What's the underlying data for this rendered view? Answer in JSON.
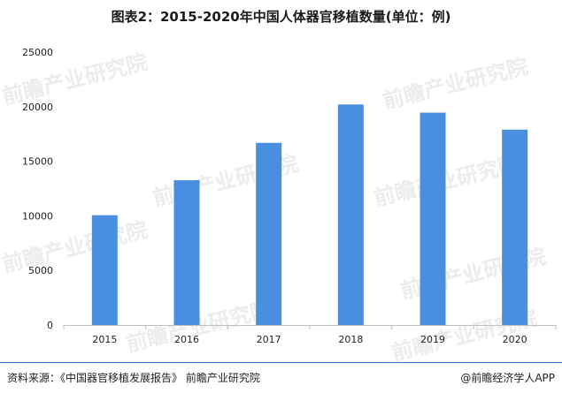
{
  "title": "图表2：2015-2020年中国人体器官移植数量(单位：例)",
  "chart_data": {
    "type": "bar",
    "categories": [
      "2015",
      "2016",
      "2017",
      "2018",
      "2019",
      "2020"
    ],
    "values": [
      10057,
      13263,
      16687,
      20201,
      19454,
      17897
    ],
    "ylim": [
      0,
      25000
    ],
    "yticks": [
      0,
      5000,
      10000,
      15000,
      20000,
      25000
    ],
    "grid": false,
    "bar_color": "#4a8ee0"
  },
  "watermark": "前瞻产业研究院",
  "footer": {
    "source": "资料来源：《中国器官移植发展报告》 前瞻产业研究院",
    "credit": "@前瞻经济学人APP"
  },
  "colors": {
    "accent": "#2e75c9"
  }
}
